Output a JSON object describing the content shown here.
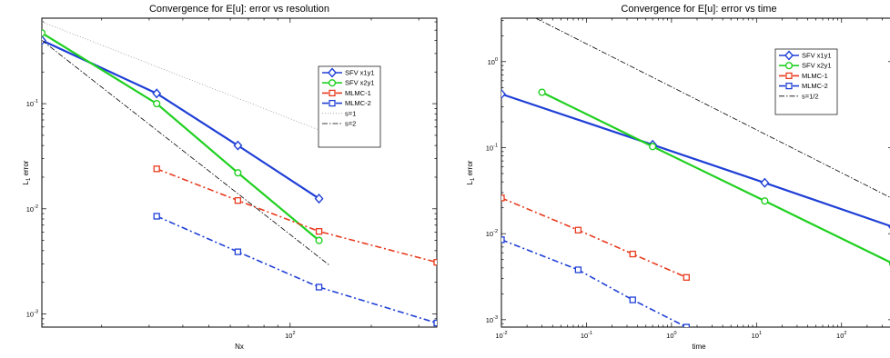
{
  "chart_data": [
    {
      "type": "line",
      "title": "Convergence for E[u]: error vs resolution",
      "xlabel": "Nx",
      "ylabel": "L1 error",
      "xscale": "log",
      "yscale": "log",
      "xlim": [
        12,
        350
      ],
      "ylim": [
        0.00075,
        0.65
      ],
      "xticks": [
        {
          "value": 100,
          "base": "10",
          "exp": "2"
        }
      ],
      "yticks": [
        {
          "value": 0.001,
          "base": "10",
          "exp": "-3"
        },
        {
          "value": 0.01,
          "base": "10",
          "exp": "-2"
        },
        {
          "value": 0.1,
          "base": "10",
          "exp": "-1"
        }
      ],
      "grid": false,
      "legend_position": "upper-right",
      "series": [
        {
          "name": "SFV x1y1",
          "color": "#1f3fd6",
          "dash": "",
          "marker": "diamond",
          "lw": 2.2,
          "x": [
            12,
            32,
            64,
            128
          ],
          "y": [
            0.4,
            0.125,
            0.04,
            0.0125
          ]
        },
        {
          "name": "SFV x2y1",
          "color": "#20d020",
          "dash": "",
          "marker": "circle",
          "lw": 2.2,
          "x": [
            12,
            32,
            64,
            128
          ],
          "y": [
            0.47,
            0.1,
            0.022,
            0.005
          ]
        },
        {
          "name": "MLMC-1",
          "color": "#e83a1e",
          "dash": "7,3,2,3",
          "marker": "square",
          "lw": 1.6,
          "x": [
            32,
            64,
            128,
            350
          ],
          "y": [
            0.024,
            0.012,
            0.0061,
            0.0031
          ]
        },
        {
          "name": "MLMC-2",
          "color": "#1f3fd6",
          "dash": "7,3,2,3",
          "marker": "square",
          "lw": 1.6,
          "x": [
            32,
            64,
            128,
            350
          ],
          "y": [
            0.0085,
            0.0039,
            0.0018,
            0.00082
          ]
        },
        {
          "name": "s=1",
          "color": "#999999",
          "dash": "1,2",
          "marker": "none",
          "lw": 0.8,
          "x": [
            12,
            140
          ],
          "y": [
            0.6,
            0.0514
          ]
        },
        {
          "name": "s=2",
          "color": "#000000",
          "dash": "6,2,1.5,2",
          "marker": "none",
          "lw": 0.8,
          "x": [
            12,
            140
          ],
          "y": [
            0.4,
            0.0029
          ]
        }
      ]
    },
    {
      "type": "line",
      "title": "Convergence for E[u]: error vs time",
      "xlabel": "time",
      "ylabel": "L1 error",
      "xscale": "log",
      "yscale": "log",
      "xlim": [
        0.01,
        400
      ],
      "ylim": [
        0.00082,
        3.2
      ],
      "xticks": [
        {
          "value": 0.01,
          "base": "10",
          "exp": "-2"
        },
        {
          "value": 0.1,
          "base": "10",
          "exp": "-1"
        },
        {
          "value": 1,
          "base": "10",
          "exp": "0"
        },
        {
          "value": 10,
          "base": "10",
          "exp": "1"
        },
        {
          "value": 100,
          "base": "10",
          "exp": "2"
        }
      ],
      "yticks": [
        {
          "value": 0.001,
          "base": "10",
          "exp": "-3"
        },
        {
          "value": 0.01,
          "base": "10",
          "exp": "-2"
        },
        {
          "value": 0.1,
          "base": "10",
          "exp": "-1"
        },
        {
          "value": 1,
          "base": "10",
          "exp": "0"
        }
      ],
      "grid": false,
      "legend_position": "upper-right",
      "series": [
        {
          "name": "SFV x1y1",
          "color": "#1f3fd6",
          "dash": "",
          "marker": "diamond",
          "lw": 2.2,
          "x": [
            0.01,
            0.6,
            12.5,
            400
          ],
          "y": [
            0.42,
            0.108,
            0.039,
            0.012
          ]
        },
        {
          "name": "SFV x2y1",
          "color": "#20d020",
          "dash": "",
          "marker": "circle",
          "lw": 2.2,
          "x": [
            0.03,
            0.6,
            12.5,
            400
          ],
          "y": [
            0.44,
            0.103,
            0.024,
            0.0045
          ]
        },
        {
          "name": "MLMC-1",
          "color": "#e83a1e",
          "dash": "7,3,2,3",
          "marker": "square",
          "lw": 1.6,
          "x": [
            0.01,
            0.08,
            0.35,
            1.5
          ],
          "y": [
            0.026,
            0.011,
            0.0058,
            0.0031
          ]
        },
        {
          "name": "MLMC-2",
          "color": "#1f3fd6",
          "dash": "7,3,2,3",
          "marker": "square",
          "lw": 1.6,
          "x": [
            0.01,
            0.08,
            0.35,
            1.5
          ],
          "y": [
            0.0085,
            0.0038,
            0.0017,
            0.00082
          ]
        },
        {
          "name": "s=1/2",
          "color": "#000000",
          "dash": "6,2,1.5,2",
          "marker": "none",
          "lw": 0.8,
          "x": [
            0.02,
            400
          ],
          "y": [
            3.6,
            0.0255
          ]
        }
      ]
    }
  ]
}
